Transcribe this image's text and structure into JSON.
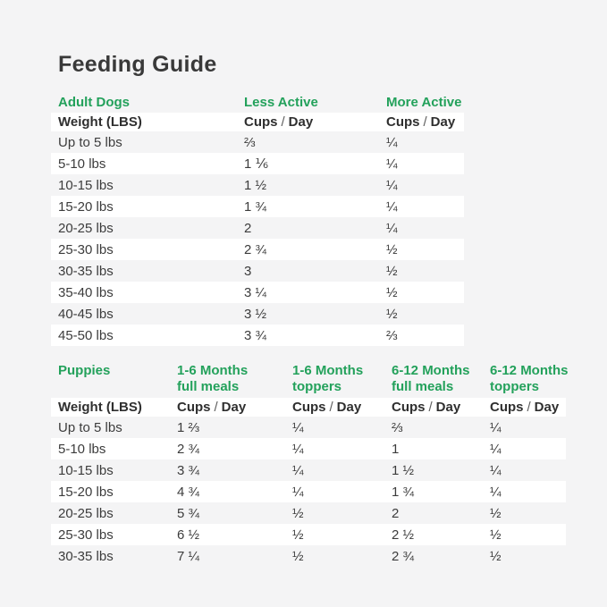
{
  "page": {
    "title": "Feeding Guide"
  },
  "colors": {
    "background": "#f4f4f5",
    "row_stripe": "#ffffff",
    "accent_green": "#23a15b",
    "heading_text": "#393939",
    "body_text": "#3c3c3c"
  },
  "labels": {
    "cups": "Cups",
    "slash": "/",
    "day": "Day"
  },
  "adult_dogs": {
    "section_title": "Adult Dogs",
    "columns": [
      "Less Active",
      "More Active"
    ],
    "weight_header": "Weight (LBS)",
    "rows": [
      {
        "weight": "Up to 5 lbs",
        "less_active": "⅔",
        "more_active": "¼"
      },
      {
        "weight": "5-10 lbs",
        "less_active": "1 ⅙",
        "more_active": "¼"
      },
      {
        "weight": "10-15 lbs",
        "less_active": "1 ½",
        "more_active": "¼"
      },
      {
        "weight": "15-20 lbs",
        "less_active": "1 ¾",
        "more_active": "¼"
      },
      {
        "weight": "20-25 lbs",
        "less_active": "2",
        "more_active": "¼"
      },
      {
        "weight": "25-30 lbs",
        "less_active": "2 ¾",
        "more_active": "½"
      },
      {
        "weight": "30-35 lbs",
        "less_active": "3",
        "more_active": "½"
      },
      {
        "weight": "35-40 lbs",
        "less_active": "3 ¼",
        "more_active": "½"
      },
      {
        "weight": "40-45 lbs",
        "less_active": "3 ½",
        "more_active": "½"
      },
      {
        "weight": "45-50 lbs",
        "less_active": "3 ¾",
        "more_active": "⅔"
      }
    ]
  },
  "puppies": {
    "section_title": "Puppies",
    "columns": [
      {
        "line1": "1-6 Months",
        "line2": "full meals"
      },
      {
        "line1": "1-6 Months",
        "line2": "toppers"
      },
      {
        "line1": "6-12 Months",
        "line2": "full meals"
      },
      {
        "line1": "6-12 Months",
        "line2": "toppers"
      }
    ],
    "weight_header": "Weight (LBS)",
    "rows": [
      {
        "weight": "Up to 5 lbs",
        "meals_1_6": "1 ⅔",
        "toppers_1_6": "¼",
        "meals_6_12": "⅔",
        "toppers_6_12": "¼"
      },
      {
        "weight": "5-10 lbs",
        "meals_1_6": "2 ¾",
        "toppers_1_6": "¼",
        "meals_6_12": "1",
        "toppers_6_12": "¼"
      },
      {
        "weight": "10-15 lbs",
        "meals_1_6": "3 ¾",
        "toppers_1_6": "¼",
        "meals_6_12": "1 ½",
        "toppers_6_12": "¼"
      },
      {
        "weight": "15-20 lbs",
        "meals_1_6": "4 ¾",
        "toppers_1_6": "¼",
        "meals_6_12": "1 ¾",
        "toppers_6_12": "¼"
      },
      {
        "weight": "20-25 lbs",
        "meals_1_6": "5 ¾",
        "toppers_1_6": "½",
        "meals_6_12": "2",
        "toppers_6_12": "½"
      },
      {
        "weight": "25-30 lbs",
        "meals_1_6": "6 ½",
        "toppers_1_6": "½",
        "meals_6_12": "2 ½",
        "toppers_6_12": "½"
      },
      {
        "weight": "30-35 lbs",
        "meals_1_6": "7 ¼",
        "toppers_1_6": "½",
        "meals_6_12": "2 ¾",
        "toppers_6_12": "½"
      }
    ]
  }
}
